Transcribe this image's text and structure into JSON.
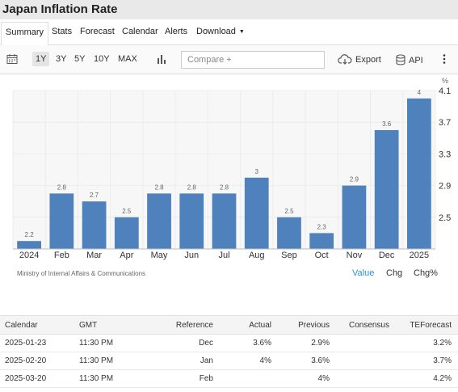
{
  "header": {
    "title": "Japan Inflation Rate"
  },
  "tabs": [
    {
      "label": "Summary"
    },
    {
      "label": "Stats"
    },
    {
      "label": "Forecast"
    },
    {
      "label": "Calendar"
    },
    {
      "label": "Alerts"
    },
    {
      "label": "Download"
    }
  ],
  "toolbar": {
    "ranges": [
      "1Y",
      "3Y",
      "5Y",
      "10Y",
      "MAX"
    ],
    "active_range": "1Y",
    "compare_placeholder": "Compare +",
    "export_label": "Export",
    "api_label": "API",
    "icons": [
      "calendar-icon",
      "bar-chart-icon",
      "cloud-download-icon",
      "database-icon",
      "more-vertical-icon"
    ]
  },
  "chart_data": {
    "type": "bar",
    "categories": [
      "2024",
      "Feb",
      "Mar",
      "Apr",
      "May",
      "Jun",
      "Jul",
      "Aug",
      "Sep",
      "Oct",
      "Nov",
      "Dec",
      "2025"
    ],
    "values": [
      2.2,
      2.8,
      2.7,
      2.5,
      2.8,
      2.8,
      2.8,
      3,
      2.5,
      2.3,
      2.9,
      3.6,
      4
    ],
    "value_labels": [
      "2.2",
      "2.8",
      "2.7",
      "2.5",
      "2.8",
      "2.8",
      "2.8",
      "3",
      "2.5",
      "2.3",
      "2.9",
      "3.6",
      "4"
    ],
    "yticks": [
      "4.1",
      "3.7",
      "3.3",
      "2.9",
      "2.5"
    ],
    "ylabel": "%",
    "ylim": [
      2.1,
      4.1
    ],
    "grid": true,
    "bar_color": "#4f81bd",
    "label_color": "#666666"
  },
  "source": "Ministry of Internal Affairs & Communications",
  "views": {
    "value": "Value",
    "chg": "Chg",
    "chgpct": "Chg%",
    "active_color": "#2a8fdc"
  },
  "calendar": {
    "headers": [
      "Calendar",
      "GMT",
      "Reference",
      "Actual",
      "Previous",
      "Consensus",
      "TEForecast"
    ],
    "rows": [
      [
        "2025-01-23",
        "11:30 PM",
        "Dec",
        "3.6%",
        "2.9%",
        "",
        "3.2%"
      ],
      [
        "2025-02-20",
        "11:30 PM",
        "Jan",
        "4%",
        "3.6%",
        "",
        "3.7%"
      ],
      [
        "2025-03-20",
        "11:30 PM",
        "Feb",
        "",
        "4%",
        "",
        "4.2%"
      ]
    ]
  }
}
